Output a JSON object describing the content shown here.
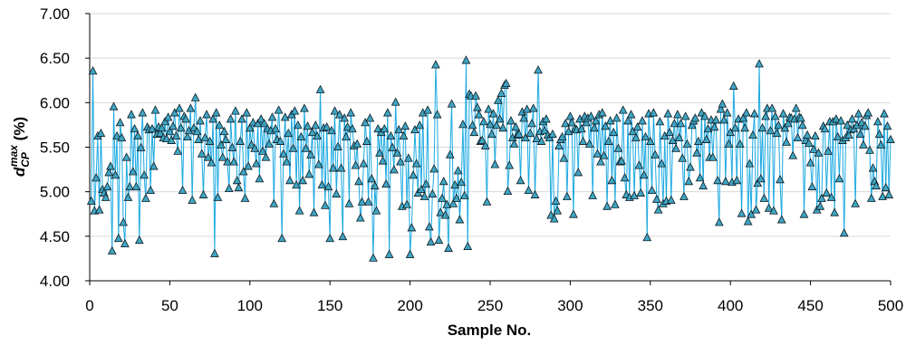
{
  "chart_data": {
    "type": "line",
    "title": "",
    "xlabel": "Sample No.",
    "ylabel": {
      "base": "d",
      "sub": "CP",
      "sup": "max",
      "unit": " (%)"
    },
    "xlim": [
      0,
      500
    ],
    "ylim": [
      4.0,
      7.0
    ],
    "xticks": [
      0,
      50,
      100,
      150,
      200,
      250,
      300,
      350,
      400,
      450,
      500
    ],
    "yticks": [
      4.0,
      4.5,
      5.0,
      5.5,
      6.0,
      6.5,
      7.0
    ],
    "xtick_labels": [
      "0",
      "50",
      "100",
      "150",
      "200",
      "250",
      "300",
      "350",
      "400",
      "450",
      "500"
    ],
    "ytick_labels": [
      "4.00",
      "4.50",
      "5.00",
      "5.50",
      "6.00",
      "6.50",
      "7.00"
    ],
    "grid": "horizontal",
    "legend": "none",
    "colors": {
      "line": "#1ba9e1",
      "marker_fill": "#3fa5c2",
      "marker_stroke": "#0d1b24",
      "grid": "#d9d9d9",
      "axis": "#000000"
    },
    "series": [
      {
        "marker": "triangle",
        "x_start": 1,
        "x_step": 1,
        "values": [
          4.89,
          6.35,
          4.78,
          5.15,
          5.62,
          4.79,
          5.65,
          5.02,
          4.98,
          4.93,
          5.05,
          5.21,
          5.28,
          4.33,
          5.95,
          5.18,
          5.62,
          4.47,
          5.77,
          5.6,
          4.65,
          4.41,
          5.38,
          4.93,
          5.05,
          5.86,
          5.22,
          5.7,
          5.05,
          5.62,
          4.45,
          5.49,
          5.88,
          5.18,
          4.92,
          5.72,
          5.69,
          5.01,
          5.7,
          5.28,
          5.91,
          5.64,
          5.72,
          5.65,
          5.71,
          5.6,
          5.78,
          5.59,
          5.83,
          5.67,
          5.57,
          5.73,
          5.88,
          5.62,
          5.45,
          5.93,
          5.71,
          5.01,
          5.84,
          5.81,
          5.61,
          5.68,
          5.93,
          4.9,
          5.71,
          6.05,
          5.67,
          5.58,
          5.79,
          5.42,
          4.96,
          5.6,
          5.86,
          5.38,
          5.56,
          5.32,
          5.81,
          4.3,
          5.88,
          4.93,
          5.74,
          5.52,
          5.38,
          5.67,
          5.58,
          5.33,
          5.03,
          5.81,
          5.49,
          5.33,
          5.9,
          5.12,
          5.04,
          5.56,
          5.81,
          5.22,
          4.92,
          5.88,
          5.28,
          5.71,
          5.52,
          5.77,
          5.48,
          5.31,
          5.76,
          5.14,
          5.81,
          5.45,
          5.76,
          5.38,
          5.7,
          5.53,
          5.68,
          5.83,
          4.86,
          5.7,
          5.58,
          5.91,
          5.56,
          4.47,
          5.42,
          5.83,
          5.33,
          5.65,
          5.12,
          5.86,
          5.48,
          5.9,
          5.07,
          5.74,
          4.78,
          5.61,
          5.12,
          5.93,
          5.48,
          5.73,
          5.19,
          5.41,
          5.66,
          4.76,
          5.74,
          5.62,
          5.3,
          6.14,
          5.07,
          5.71,
          4.84,
          5.72,
          5.05,
          4.47,
          5.68,
          5.26,
          5.9,
          4.97,
          5.5,
          5.86,
          5.26,
          4.49,
          5.82,
          5.61,
          5.72,
          4.86,
          5.88,
          5.7,
          5.51,
          5.29,
          5.53,
          5.11,
          4.7,
          4.88,
          5.31,
          5.77,
          5.56,
          4.88,
          5.82,
          5.14,
          4.25,
          5.06,
          4.78,
          5.7,
          5.43,
          5.66,
          5.34,
          5.7,
          5.08,
          5.88,
          4.29,
          5.62,
          5.49,
          5.24,
          6.0,
          5.43,
          5.69,
          5.33,
          4.83,
          5.62,
          5.73,
          4.85,
          5.37,
          4.29,
          4.59,
          5.18,
          5.69,
          5.31,
          4.98,
          5.74,
          5.02,
          5.88,
          4.94,
          5.08,
          5.91,
          4.6,
          4.43,
          4.97,
          5.25,
          6.42,
          5.86,
          4.45,
          4.76,
          4.92,
          5.11,
          4.73,
          4.85,
          4.36,
          5.41,
          5.98,
          4.86,
          5.07,
          4.92,
          5.23,
          4.68,
          5.1,
          5.75,
          4.95,
          6.47,
          4.38,
          6.09,
          6.07,
          5.74,
          5.66,
          6.07,
          5.94,
          5.86,
          5.56,
          5.57,
          5.78,
          5.51,
          4.88,
          5.92,
          5.75,
          5.64,
          5.87,
          5.3,
          5.74,
          6.02,
          5.81,
          6.1,
          5.71,
          6.19,
          6.21,
          5.0,
          5.29,
          5.79,
          5.6,
          5.53,
          5.72,
          5.63,
          5.64,
          5.12,
          5.89,
          5.82,
          5.6,
          5.92,
          5.01,
          5.65,
          5.76,
          5.93,
          4.96,
          5.59,
          6.36,
          5.67,
          5.56,
          5.78,
          5.68,
          5.81,
          5.63,
          5.6,
          4.73,
          5.64,
          4.69,
          4.89,
          4.78,
          5.51,
          5.58,
          5.61,
          5.37,
          5.76,
          4.94,
          5.67,
          5.84,
          5.77,
          4.74,
          5.7,
          5.69,
          5.21,
          5.81,
          5.7,
          5.56,
          5.84,
          5.77,
          5.82,
          5.53,
          5.84,
          4.95,
          5.71,
          5.79,
          5.42,
          5.86,
          5.33,
          5.88,
          5.4,
          5.73,
          4.83,
          5.56,
          5.79,
          5.12,
          5.66,
          4.85,
          5.82,
          5.48,
          5.33,
          5.34,
          5.91,
          5.15,
          4.96,
          5.79,
          4.93,
          5.86,
          5.67,
          4.95,
          5.6,
          5.72,
          5.29,
          4.98,
          5.79,
          5.18,
          5.61,
          4.48,
          5.87,
          5.56,
          5.01,
          5.88,
          5.41,
          4.91,
          4.79,
          5.78,
          5.31,
          4.86,
          5.62,
          4.89,
          5.87,
          5.66,
          4.9,
          5.57,
          5.76,
          5.48,
          5.86,
          5.6,
          5.76,
          5.37,
          4.94,
          5.84,
          5.53,
          5.11,
          5.27,
          5.74,
          5.79,
          5.82,
          5.43,
          5.56,
          5.15,
          5.88,
          5.06,
          5.84,
          5.58,
          5.7,
          5.38,
          5.8,
          5.38,
          5.72,
          5.8,
          5.12,
          4.65,
          5.92,
          5.98,
          5.8,
          5.11,
          5.88,
          5.53,
          5.66,
          5.1,
          6.18,
          5.71,
          5.12,
          5.81,
          5.53,
          4.75,
          5.82,
          5.71,
          5.88,
          4.66,
          5.31,
          4.74,
          5.63,
          5.87,
          4.79,
          5.09,
          6.43,
          5.14,
          5.71,
          4.92,
          5.84,
          5.93,
          4.81,
          5.68,
          5.93,
          4.78,
          5.84,
          5.65,
          5.74,
          5.13,
          4.68,
          5.87,
          5.71,
          5.55,
          5.76,
          5.83,
          5.82,
          5.4,
          5.81,
          5.93,
          5.6,
          5.83,
          5.82,
          5.74,
          4.74,
          5.57,
          5.63,
          5.54,
          5.32,
          5.05,
          5.47,
          5.62,
          4.79,
          5.43,
          4.83,
          4.92,
          5.73,
          5.7,
          4.98,
          5.45,
          5.78,
          4.93,
          5.78,
          4.76,
          5.81,
          5.61,
          5.14,
          5.79,
          5.57,
          4.53,
          5.6,
          5.74,
          5.63,
          5.69,
          5.81,
          5.7,
          4.86,
          5.74,
          5.87,
          5.64,
          5.77,
          5.52,
          5.73,
          5.85,
          5.88,
          5.46,
          4.92,
          5.26,
          5.11,
          5.06,
          5.78,
          5.64,
          5.52,
          4.94,
          5.87,
          5.04,
          5.73,
          4.96,
          5.58
        ]
      }
    ]
  }
}
